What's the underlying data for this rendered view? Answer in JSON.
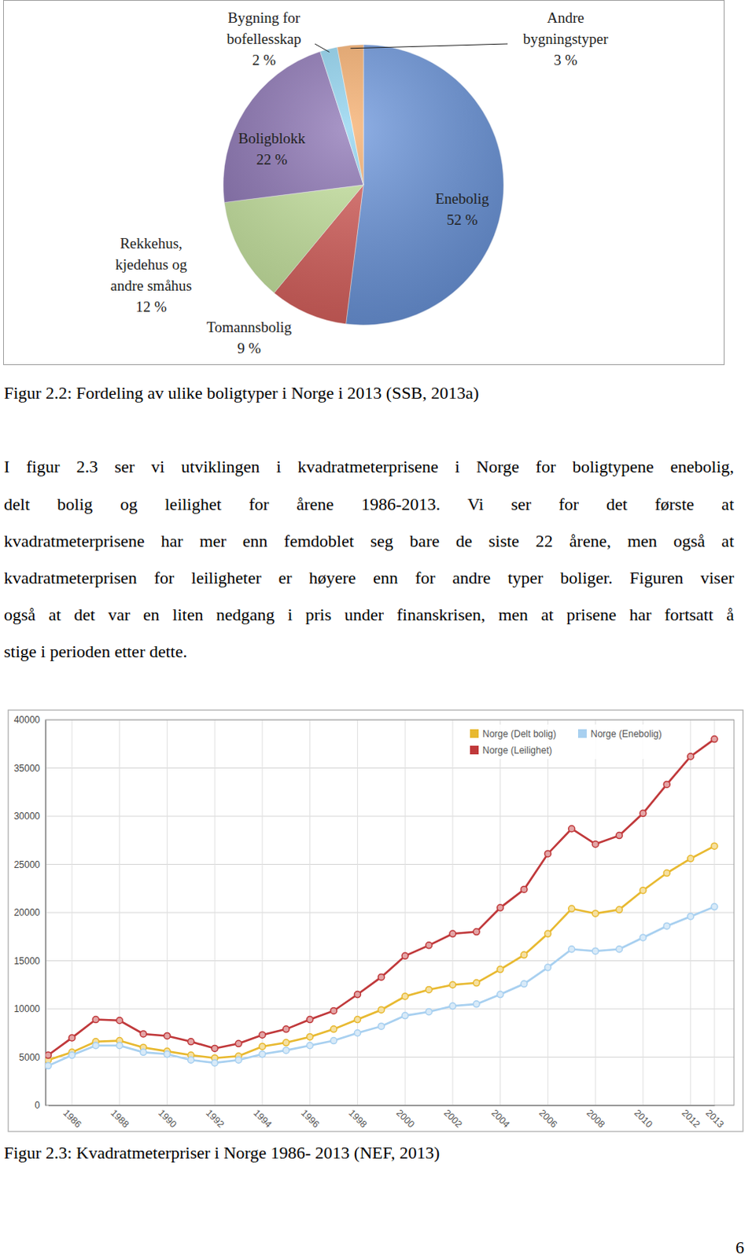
{
  "chart_data": [
    {
      "type": "pie",
      "categories": [
        "Enebolig",
        "Tomannsbolig",
        "Rekkehus,\nkjedehus og\nandre småhus",
        "Boligblokk",
        "Bygning for\nbofellesskap",
        "Andre\nbygningstyper"
      ],
      "values": [
        52,
        9,
        12,
        22,
        2,
        3
      ],
      "value_labels": [
        "52 %",
        "9 %",
        "12 %",
        "22 %",
        "2 %",
        "3 %"
      ],
      "colors": [
        "#6a95dc",
        "#d9605c",
        "#c8e6a0",
        "#8c74b5",
        "#8ed3f0",
        "#f6ad6b"
      ],
      "data_labels": true,
      "caption": "Figur 2.2: Fordeling av ulike boligtyper i Norge i 2013 (SSB, 2013a)"
    },
    {
      "type": "line",
      "categories": [
        null,
        "1986",
        null,
        "1988",
        null,
        "1990",
        null,
        "1992",
        null,
        "1994",
        null,
        "1996",
        null,
        "1998",
        null,
        "2000",
        null,
        "2002",
        null,
        "2004",
        null,
        "2006",
        null,
        "2008",
        null,
        "2010",
        null,
        "2012",
        "2013"
      ],
      "series": [
        {
          "name": "Norge (Delt bolig)",
          "color": "#e8b930",
          "values": [
            4700,
            5500,
            6600,
            6700,
            6000,
            5600,
            5200,
            4900,
            5100,
            6100,
            6500,
            7100,
            7900,
            8900,
            9900,
            11300,
            12000,
            12500,
            12700,
            14100,
            15600,
            17800,
            20400,
            19900,
            20300,
            22300,
            24100,
            25600,
            26900
          ]
        },
        {
          "name": "Norge (Enebolig)",
          "color": "#a8d0f0",
          "values": [
            4100,
            5200,
            6200,
            6200,
            5500,
            5300,
            4700,
            4400,
            4700,
            5300,
            5700,
            6200,
            6700,
            7500,
            8200,
            9300,
            9700,
            10300,
            10500,
            11500,
            12600,
            14300,
            16200,
            16000,
            16200,
            17400,
            18600,
            19600,
            20600
          ]
        },
        {
          "name": "Norge (Leilighet)",
          "color": "#c0383a",
          "values": [
            5200,
            7000,
            8900,
            8800,
            7400,
            7200,
            6600,
            5900,
            6400,
            7300,
            7900,
            8900,
            9800,
            11500,
            13300,
            15500,
            16600,
            17800,
            18000,
            20500,
            22400,
            26100,
            28700,
            27100,
            28000,
            30300,
            33300,
            36200,
            38000
          ]
        }
      ],
      "ylim": [
        0,
        40000
      ],
      "yticks": [
        0,
        5000,
        10000,
        15000,
        20000,
        25000,
        30000,
        35000,
        40000
      ],
      "grid": true,
      "legend": "top-right",
      "marker": "circle",
      "line_style": "solid",
      "caption": "Figur 2.3: Kvadratmeterpriser i Norge 1986- 2013 (NEF, 2013)"
    }
  ],
  "document": {
    "paragraph": [
      "I figur 2.3 ser vi utviklingen i kvadratmeterprisene i Norge for boligtypene enebolig,",
      "delt bolig og leilighet for årene 1986-2013. Vi ser for det første at",
      "kvadratmeterprisene har mer enn femdoblet seg bare de siste 22 årene, men også at",
      "kvadratmeterprisen for leiligheter er høyere enn for andre typer boliger. Figuren viser",
      "også at det var en liten nedgang i pris under finanskrisen, men at prisene har fortsatt å",
      "stige i perioden etter dette."
    ],
    "page_number": "6"
  }
}
